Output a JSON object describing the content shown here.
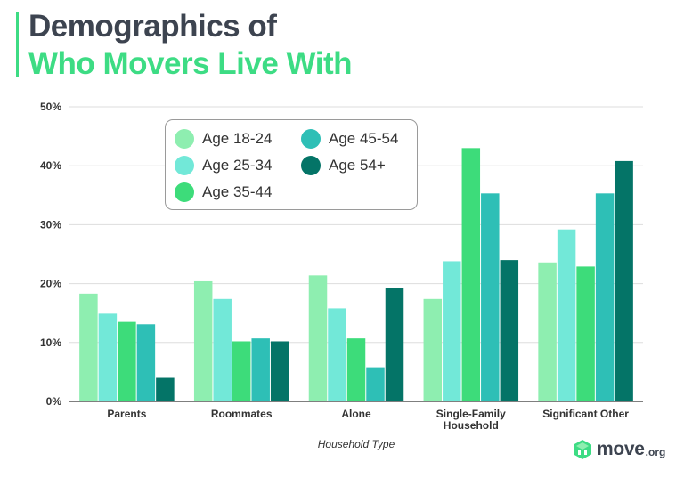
{
  "title": {
    "line1": "Demographics of",
    "line2": "Who Movers Live With"
  },
  "chart_data": {
    "type": "bar",
    "categories": [
      "Parents",
      "Roommates",
      "Alone",
      "Single-Family Household",
      "Significant Other"
    ],
    "category_lines": [
      [
        "Parents"
      ],
      [
        "Roommates"
      ],
      [
        "Alone"
      ],
      [
        "Single-Family",
        "Household"
      ],
      [
        "Significant Other"
      ]
    ],
    "series": [
      {
        "name": "Age 18-24",
        "color": "#8eeeb0",
        "values": [
          18.3,
          20.4,
          21.4,
          17.4,
          23.6
        ]
      },
      {
        "name": "Age 25-34",
        "color": "#72e8d8",
        "values": [
          14.9,
          17.4,
          15.8,
          23.8,
          29.2
        ]
      },
      {
        "name": "Age 35-44",
        "color": "#3ddc7a",
        "values": [
          13.5,
          10.2,
          10.7,
          43.0,
          22.9
        ]
      },
      {
        "name": "Age 45-54",
        "color": "#2ebfb6",
        "values": [
          13.1,
          10.7,
          5.8,
          35.3,
          35.3
        ]
      },
      {
        "name": "Age 54+",
        "color": "#047467",
        "values": [
          4.0,
          10.2,
          19.3,
          24.0,
          40.8
        ]
      }
    ],
    "yticks": [
      "0%",
      "10%",
      "20%",
      "30%",
      "40%",
      "50%"
    ],
    "ylim": [
      0,
      50
    ],
    "xlabel": "Household Type",
    "ylabel": "",
    "grid": true,
    "legend_position": "top-left"
  },
  "brand": {
    "name": "move",
    "suffix": ".org",
    "icon": "move-logo-icon",
    "color": "#3ddc84"
  }
}
